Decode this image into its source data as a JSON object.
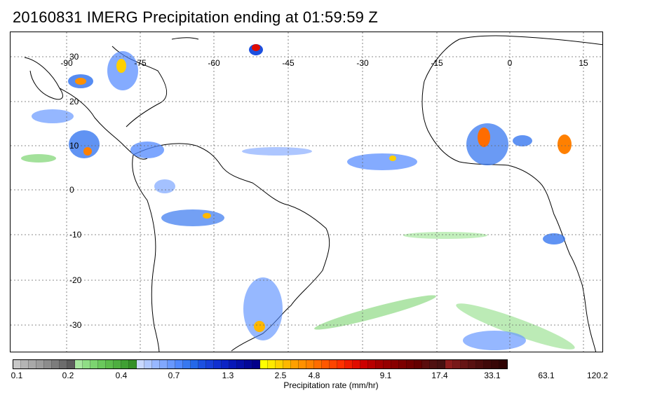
{
  "title": "20160831 IMERG Precipitation ending at 01:59:59 Z",
  "map": {
    "longitude_labels": [
      "-90",
      "-75",
      "-60",
      "-45",
      "-30",
      "-15",
      "0",
      "15"
    ],
    "latitude_labels": [
      "30",
      "20",
      "10",
      "0",
      "-10",
      "-20",
      "-30"
    ],
    "grid": "dotted"
  },
  "colorbar": {
    "label": "Precipitation rate (mm/hr)",
    "tick_labels": [
      "0.1",
      "0.2",
      "0.4",
      "0.7",
      "1.3",
      "2.5",
      "4.8",
      "9.1",
      "17.4",
      "33.1",
      "63.1",
      "120.2"
    ],
    "colors": [
      "#c8c8c8",
      "#b4b4b4",
      "#a8a8a8",
      "#9c9c9c",
      "#8c8c8c",
      "#7c7c7c",
      "#6c6c6c",
      "#5c5c5c",
      "#a8e8a0",
      "#90de86",
      "#7cd470",
      "#6ac85c",
      "#5cbc4c",
      "#4eae40",
      "#40a034",
      "#349028",
      "#c8d8ff",
      "#b0c8ff",
      "#98b8ff",
      "#80a8ff",
      "#6898ff",
      "#5088ff",
      "#3878f0",
      "#2468e8",
      "#1c50e0",
      "#1840d8",
      "#1030d0",
      "#0c24c4",
      "#0818b8",
      "#0610a8",
      "#040898",
      "#02008a",
      "#ffff00",
      "#ffe800",
      "#ffd000",
      "#ffb800",
      "#ffa000",
      "#ff9000",
      "#ff8000",
      "#ff6c00",
      "#ff5800",
      "#ff4400",
      "#ff3000",
      "#f01c00",
      "#e00c00",
      "#cc0000",
      "#b80000",
      "#a40000",
      "#960000",
      "#880000",
      "#7c0000",
      "#700000",
      "#640000",
      "#5a0c0c",
      "#501010",
      "#461010",
      "#8c1c1c",
      "#781818",
      "#661414",
      "#581010",
      "#4c0c0c",
      "#400808",
      "#380606",
      "#300404"
    ]
  }
}
